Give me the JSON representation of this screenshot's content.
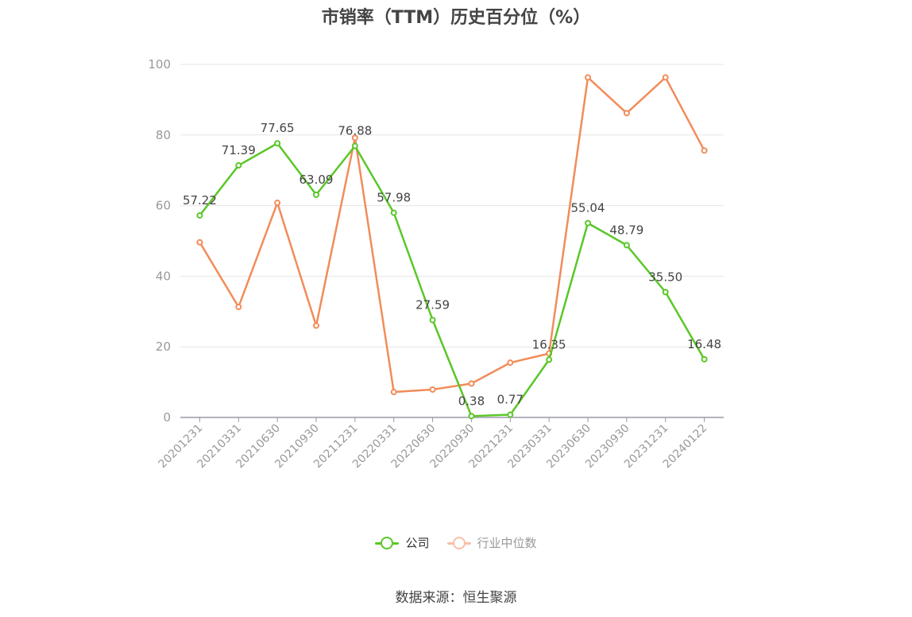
{
  "chart_data": {
    "type": "line",
    "title": "市销率（TTM）历史百分位（%）",
    "categories": [
      "20201231",
      "20210331",
      "20210630",
      "20210930",
      "20211231",
      "20220331",
      "20220630",
      "20220930",
      "20221231",
      "20230331",
      "20230630",
      "20230930",
      "20231231",
      "20240122"
    ],
    "series": [
      {
        "name": "公司",
        "color": "#5ac728",
        "values": [
          57.22,
          71.39,
          77.65,
          63.09,
          76.88,
          57.98,
          27.59,
          0.38,
          0.77,
          16.35,
          55.04,
          48.79,
          35.5,
          16.48
        ],
        "labels": [
          "57.22",
          "71.39",
          "77.65",
          "63.09",
          "76.88",
          "57.98",
          "27.59",
          "0.38",
          "0.77",
          "16.35",
          "55.04",
          "48.79",
          "35.50",
          "16.48"
        ]
      },
      {
        "name": "行业中位数",
        "color": "#f28c5a",
        "values": [
          49.6,
          31.3,
          60.8,
          26.0,
          79.2,
          7.2,
          7.9,
          9.6,
          15.5,
          18.1,
          96.3,
          86.2,
          96.3,
          75.6
        ]
      }
    ],
    "ylim": [
      0,
      100
    ],
    "yticks": [
      0,
      20,
      40,
      60,
      80,
      100
    ],
    "grid": true,
    "legend_position": "bottom-center",
    "source": "数据来源：恒生聚源"
  }
}
